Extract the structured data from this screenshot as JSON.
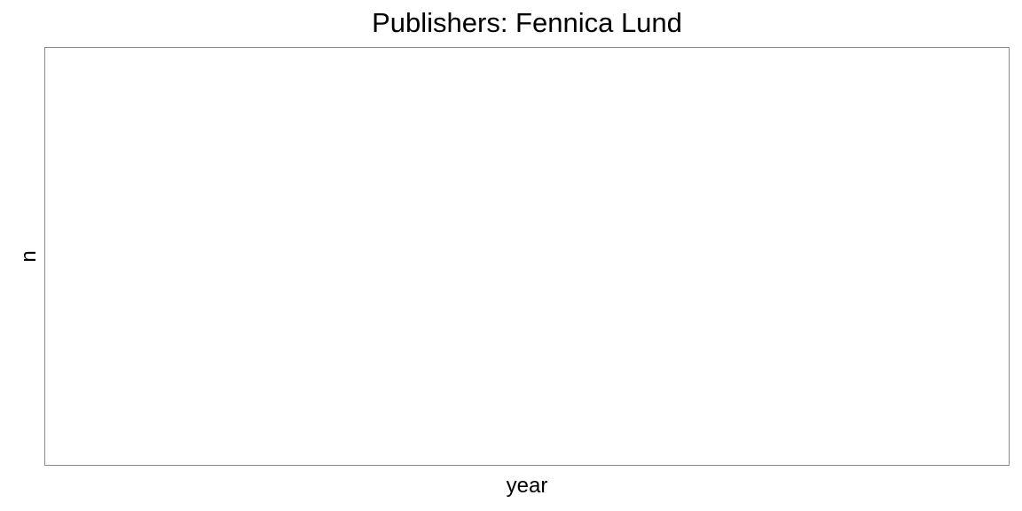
{
  "chart_data": {
    "type": "line",
    "title": "Publishers: Fennica Lund",
    "xlabel": "year",
    "ylabel": "n",
    "series": [],
    "grid": false,
    "legend": "none"
  },
  "colors": {
    "panel_border": "#8a8a8a",
    "background": "#ffffff",
    "text": "#000000"
  }
}
